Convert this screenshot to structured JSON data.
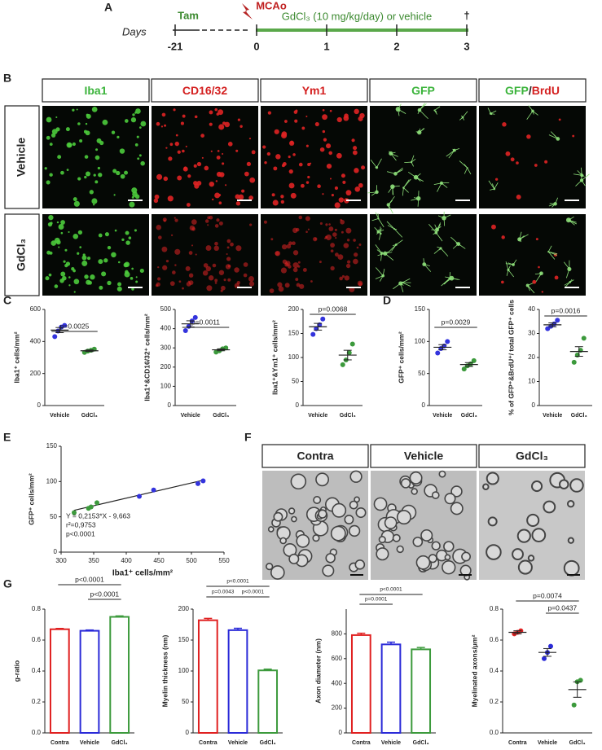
{
  "panel_labels": [
    "A",
    "B",
    "C",
    "D",
    "E",
    "F",
    "G"
  ],
  "timeline": {
    "axis_label": "Days",
    "pretreatment": "Tam",
    "event": "MCAo",
    "treatment": "GdCl₃ (10 mg/kg/day) or vehicle",
    "end_mark": "†",
    "ticks": [
      "-21",
      "0",
      "1",
      "2",
      "3"
    ]
  },
  "micrographs": {
    "columns": [
      [
        "Iba1"
      ],
      [
        "CD16/32"
      ],
      [
        "Ym1"
      ],
      [
        "GFP"
      ],
      [
        "GFP",
        "/",
        "BrdU"
      ]
    ],
    "rows": [
      "Vehicle",
      "GdCl₃"
    ]
  },
  "em": {
    "columns": [
      "Contra",
      "Vehicle",
      "GdCl₃"
    ]
  },
  "chart_data": [
    {
      "type": "dot",
      "y_label": "Iba1⁺ cells/mm²",
      "ylim": [
        0,
        600
      ],
      "yticks": [
        0,
        200,
        400,
        600
      ],
      "annotations": [
        "p=0.0025"
      ],
      "groups": [
        {
          "name": "Vehicle",
          "color": "#3333dd",
          "values": [
            430,
            465,
            490,
            500
          ],
          "mean": 471,
          "sem": 16
        },
        {
          "name": "GdCl₃",
          "color": "#3c9a3c",
          "values": [
            332,
            340,
            345,
            352
          ],
          "mean": 342,
          "sem": 5
        }
      ]
    },
    {
      "type": "dot",
      "y_label": "Iba1⁺&CD16/32⁺ cells/mm²",
      "ylim": [
        0,
        500
      ],
      "yticks": [
        0,
        100,
        200,
        300,
        400,
        500
      ],
      "annotations": [
        "p=0.0011"
      ],
      "groups": [
        {
          "name": "Vehicle",
          "color": "#3333dd",
          "values": [
            390,
            412,
            440,
            458
          ],
          "mean": 425,
          "sem": 16
        },
        {
          "name": "GdCl₃",
          "color": "#3c9a3c",
          "values": [
            278,
            285,
            295,
            300
          ],
          "mean": 290,
          "sem": 5
        }
      ]
    },
    {
      "type": "dot",
      "y_label": "Iba1⁺&Ym1⁺ cells/mm²",
      "ylim": [
        0,
        200
      ],
      "yticks": [
        0,
        50,
        100,
        150,
        200
      ],
      "annotations": [
        "p=0.0068"
      ],
      "groups": [
        {
          "name": "Vehicle",
          "color": "#3333dd",
          "values": [
            148,
            160,
            168,
            180
          ],
          "mean": 164,
          "sem": 7
        },
        {
          "name": "GdCl₃",
          "color": "#3c9a3c",
          "values": [
            85,
            95,
            110,
            128
          ],
          "mean": 105,
          "sem": 10
        }
      ]
    },
    {
      "type": "dot",
      "y_label": "GFP⁺ cells/mm²",
      "ylim": [
        0,
        150
      ],
      "yticks": [
        0,
        50,
        100,
        150
      ],
      "annotations": [
        "p=0.0029"
      ],
      "groups": [
        {
          "name": "Vehicle",
          "color": "#3333dd",
          "values": [
            82,
            89,
            93,
            100
          ],
          "mean": 91,
          "sem": 4
        },
        {
          "name": "GdCl₃",
          "color": "#3c9a3c",
          "values": [
            57,
            62,
            65,
            70
          ],
          "mean": 64,
          "sem": 3
        }
      ]
    },
    {
      "type": "dot",
      "y_label": "% of GFP⁺&BrdU⁺/ total GFP⁺ cells",
      "ylim": [
        0,
        40
      ],
      "yticks": [
        0,
        10,
        20,
        30,
        40
      ],
      "annotations": [
        "p=0.0016"
      ],
      "groups": [
        {
          "name": "Vehicle",
          "color": "#3333dd",
          "values": [
            32,
            33,
            34,
            35.5
          ],
          "mean": 33.6,
          "sem": 0.8
        },
        {
          "name": "GdCl₃",
          "color": "#3c9a3c",
          "values": [
            18,
            21,
            23,
            28
          ],
          "mean": 22.5,
          "sem": 2
        }
      ]
    },
    {
      "type": "scatter",
      "y_label": "GFP⁺ cells/mm²",
      "x_label": "Iba1⁺ cells/mm²",
      "xlim": [
        300,
        550
      ],
      "xticks": [
        300,
        350,
        400,
        450,
        500,
        550
      ],
      "ylim": [
        0,
        150
      ],
      "yticks": [
        0,
        50,
        100,
        150
      ],
      "series": [
        {
          "color": "#3c9a3c",
          "x": [
            320,
            342,
            346,
            355
          ],
          "values": [
            56,
            62,
            64,
            70
          ]
        },
        {
          "color": "#3333dd",
          "x": [
            420,
            442,
            510,
            518
          ],
          "values": [
            79,
            88,
            97,
            101
          ]
        }
      ],
      "fit": {
        "slope": 0.2153,
        "intercept": -9.663
      },
      "annotations": [
        "Y = 0,2153*X - 9,663",
        "r²=0,9753",
        "p<0.0001"
      ]
    },
    {
      "type": "bar",
      "y_label": "g-ratio",
      "ylim": [
        0,
        0.8
      ],
      "yticks": [
        {
          "value": 0,
          "label": "0.0"
        },
        0.2,
        0.4,
        0.6,
        0.8
      ],
      "annotations": [
        "p<0.0001",
        "p<0.0001"
      ],
      "groups": [
        {
          "name": "Contra",
          "color": "#e02020",
          "mean": 0.67,
          "sem": 0.005
        },
        {
          "name": "Vehicle",
          "color": "#2a2ad8",
          "mean": 0.66,
          "sem": 0.005
        },
        {
          "name": "GdCl₃",
          "color": "#3c9a3c",
          "mean": 0.75,
          "sem": 0.006
        }
      ]
    },
    {
      "type": "bar",
      "y_label": "Myelin thickness (nm)",
      "ylim": [
        0,
        200
      ],
      "yticks": [
        0,
        50,
        100,
        150,
        200
      ],
      "annotations": [
        "p<0.0001",
        "p=0.0043",
        "p<0.0001"
      ],
      "groups": [
        {
          "name": "Contra",
          "color": "#e02020",
          "mean": 182,
          "sem": 3
        },
        {
          "name": "Vehicle",
          "color": "#2a2ad8",
          "mean": 166,
          "sem": 3
        },
        {
          "name": "GdCl₃",
          "color": "#3c9a3c",
          "mean": 101,
          "sem": 2
        }
      ]
    },
    {
      "type": "bar",
      "y_label": "Axon diameter (nm)",
      "ylim": [
        0,
        1000
      ],
      "yticks": [
        0,
        200,
        400,
        600,
        800
      ],
      "annotations": [
        "p<0.0001",
        "p=0.0001"
      ],
      "groups": [
        {
          "name": "Contra",
          "color": "#e02020",
          "mean": 790,
          "sem": 15
        },
        {
          "name": "Vehicle",
          "color": "#2a2ad8",
          "mean": 715,
          "sem": 18
        },
        {
          "name": "GdCl₃",
          "color": "#3c9a3c",
          "mean": 675,
          "sem": 15
        }
      ]
    },
    {
      "type": "dot",
      "y_label": "Myelinated axons/μm²",
      "ylim": [
        0,
        0.8
      ],
      "yticks": [
        {
          "value": 0,
          "label": "0.0"
        },
        0.2,
        0.4,
        0.6,
        0.8
      ],
      "annotations": [
        "p=0.0074",
        "p=0.0437"
      ],
      "groups": [
        {
          "name": "Contra",
          "color": "#e02020",
          "values": [
            0.64,
            0.65,
            0.66
          ],
          "mean": 0.65,
          "sem": 0.01
        },
        {
          "name": "Vehicle",
          "color": "#2a2ad8",
          "values": [
            0.48,
            0.52,
            0.56
          ],
          "mean": 0.52,
          "sem": 0.025
        },
        {
          "name": "GdCl₃",
          "color": "#3c9a3c",
          "values": [
            0.18,
            0.33,
            0.34
          ],
          "mean": 0.28,
          "sem": 0.05
        }
      ]
    }
  ]
}
